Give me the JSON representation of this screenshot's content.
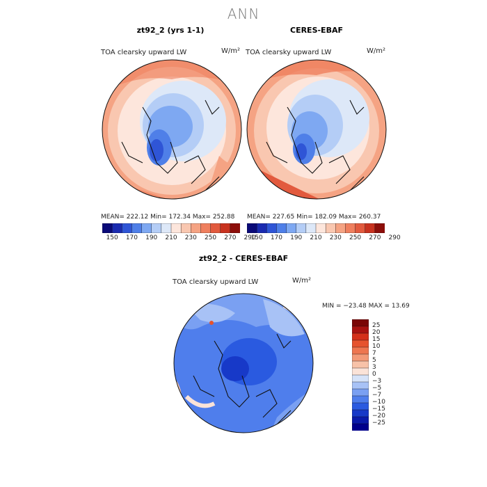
{
  "header": {
    "title": "ANN"
  },
  "panels": {
    "model": {
      "title": "zt92_2 (yrs 1-1)",
      "variable": "TOA clearsky upward LW",
      "units": "W/m²",
      "stats": "MEAN=  222.12   Min=  172.34   Max=  252.88"
    },
    "obs": {
      "title": "CERES-EBAF",
      "variable": "TOA clearsky upward LW",
      "units": "W/m²",
      "stats": "MEAN=  227.65   Min=  182.09   Max=  260.37"
    },
    "diff": {
      "title": "zt92_2 - CERES-EBAF",
      "variable": "TOA clearsky upward LW",
      "units": "W/m²",
      "stats": "MIN = −23.48  MAX =   13.69"
    }
  },
  "colors": {
    "abs_scale": [
      "#0a0a78",
      "#1a2bb0",
      "#2f55d6",
      "#4f7fe8",
      "#7ea8f2",
      "#b4cdf6",
      "#dde8f8",
      "#fde6dc",
      "#f9c7b0",
      "#f5a383",
      "#ef7f5e",
      "#e25a3e",
      "#c8321f",
      "#8c0e0a"
    ],
    "diff_scale": [
      "#00008c",
      "#0a1aaa",
      "#1739c8",
      "#2a5ae0",
      "#4f7eec",
      "#7aa0f2",
      "#a8c2f6",
      "#d6e3f9",
      "#fbe3d8",
      "#f8c2a8",
      "#f39a78",
      "#ee7650",
      "#e6532e",
      "#d4301a",
      "#a81210",
      "#7a0606"
    ]
  },
  "chart_data": [
    {
      "type": "heatmap",
      "title": "zt92_2 (yrs 1-1)",
      "projection": "north-polar-stereographic",
      "colorbar_ticks": [
        "150",
        "170",
        "190",
        "210",
        "230",
        "250",
        "270",
        "290"
      ],
      "mean": 222.12,
      "min": 172.34,
      "max": 252.88
    },
    {
      "type": "heatmap",
      "title": "CERES-EBAF",
      "projection": "north-polar-stereographic",
      "colorbar_ticks": [
        "150",
        "170",
        "190",
        "210",
        "230",
        "250",
        "270",
        "290"
      ],
      "mean": 227.65,
      "min": 182.09,
      "max": 260.37
    },
    {
      "type": "heatmap",
      "title": "zt92_2 - CERES-EBAF",
      "projection": "north-polar-stereographic",
      "colorbar_levels": [
        "25",
        "20",
        "15",
        "10",
        "7",
        "5",
        "3",
        "0",
        "−3",
        "−5",
        "−7",
        "−10",
        "−15",
        "−20",
        "−25"
      ],
      "min": -23.48,
      "max": 13.69
    }
  ]
}
